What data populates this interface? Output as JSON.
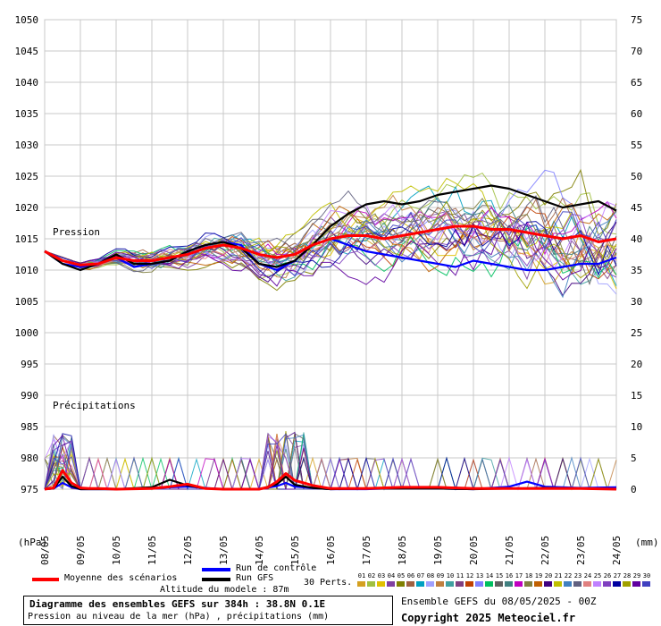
{
  "chart_data": {
    "type": "line",
    "title": "Diagramme des ensembles GEFS sur 384h : 38.8N 0.1E",
    "subtitle": "Pression au niveau de la mer (hPa) , précipitations (mm)",
    "left_axis_unit": "(hPa)",
    "right_axis_unit": "(mm)",
    "pressure_label": "Pression",
    "precip_label": "Précipitations",
    "y_left_ticks": [
      1050,
      1045,
      1040,
      1035,
      1030,
      1025,
      1020,
      1015,
      1010,
      1005,
      1000,
      995,
      990,
      985,
      980,
      975
    ],
    "y_right_ticks": [
      75,
      70,
      65,
      60,
      55,
      50,
      45,
      40,
      35,
      30,
      25,
      20,
      15,
      10,
      5,
      0
    ],
    "x_ticks": [
      "08/05",
      "09/05",
      "10/05",
      "11/05",
      "12/05",
      "13/05",
      "14/05",
      "15/05",
      "16/05",
      "17/05",
      "18/05",
      "19/05",
      "20/05",
      "21/05",
      "22/05",
      "23/05",
      "24/05"
    ],
    "x_days": [
      0,
      1,
      2,
      3,
      4,
      5,
      6,
      7,
      8,
      9,
      10,
      11,
      12,
      13,
      14,
      15,
      16
    ],
    "ylim": [
      975,
      1050
    ],
    "grid": true,
    "series": [
      {
        "name": "Moyenne des scénarios",
        "kind": "pressure",
        "color": "#ff0000",
        "x": [
          0,
          0.5,
          1,
          1.5,
          2,
          2.5,
          3,
          3.5,
          4,
          4.5,
          5,
          5.5,
          6,
          6.5,
          7,
          7.5,
          8,
          8.5,
          9,
          9.5,
          10,
          10.5,
          11,
          11.5,
          12,
          12.5,
          13,
          13.5,
          14,
          14.5,
          15,
          15.5,
          16
        ],
        "y": [
          1013,
          1011.5,
          1010.8,
          1011,
          1012,
          1011.5,
          1011.5,
          1012,
          1012.5,
          1013.5,
          1014,
          1013.5,
          1012.5,
          1012,
          1012.5,
          1014,
          1015,
          1015.5,
          1015.5,
          1015,
          1015.5,
          1016,
          1016.5,
          1017,
          1017,
          1016.5,
          1016.5,
          1016,
          1015.5,
          1015,
          1015.5,
          1014.5,
          1015
        ]
      },
      {
        "name": "Run de contrôle",
        "kind": "pressure",
        "color": "#0000ff",
        "x": [
          0,
          0.5,
          1,
          1.5,
          2,
          2.5,
          3,
          3.5,
          4,
          4.5,
          5,
          5.5,
          6,
          6.5,
          7,
          7.5,
          8,
          8.5,
          9,
          9.5,
          10,
          10.5,
          11,
          11.5,
          12,
          12.5,
          13,
          13.5,
          14,
          14.5,
          15,
          15.5,
          16
        ],
        "y": [
          1013,
          1011,
          1010.5,
          1011,
          1012,
          1010.5,
          1011,
          1011.5,
          1013,
          1014,
          1014.5,
          1014,
          1011,
          1010,
          1011.5,
          1014,
          1015,
          1014,
          1013,
          1012.5,
          1012,
          1011.5,
          1011,
          1010.5,
          1011.5,
          1011,
          1010.5,
          1010,
          1010,
          1010.5,
          1011,
          1011,
          1012
        ]
      },
      {
        "name": "Run GFS",
        "kind": "pressure",
        "color": "#000000",
        "x": [
          0,
          0.5,
          1,
          1.5,
          2,
          2.5,
          3,
          3.5,
          4,
          4.5,
          5,
          5.5,
          6,
          6.5,
          7,
          7.5,
          8,
          8.5,
          9,
          9.5,
          10,
          10.5,
          11,
          11.5,
          12,
          12.5,
          13,
          13.5,
          14,
          14.5,
          15,
          15.5,
          16
        ],
        "y": [
          1013,
          1011,
          1010,
          1011,
          1012.5,
          1011,
          1011,
          1011.5,
          1013,
          1014,
          1014.5,
          1013.5,
          1011,
          1010.5,
          1011.5,
          1014,
          1017,
          1019,
          1020.5,
          1021,
          1020.5,
          1021,
          1022,
          1022.5,
          1023,
          1023.5,
          1023,
          1022,
          1021,
          1020,
          1020.5,
          1021,
          1019.5
        ]
      },
      {
        "name": "Moyenne des scénarios",
        "kind": "precip",
        "color": "#ff0000",
        "x": [
          0,
          0.25,
          0.5,
          0.75,
          1,
          1.25,
          1.5,
          2,
          3,
          3.5,
          4,
          4.5,
          5,
          5.5,
          6,
          6.25,
          6.5,
          6.75,
          7,
          7.25,
          7.5,
          8,
          9,
          10,
          11,
          12,
          13,
          14,
          15,
          16
        ],
        "y": [
          0,
          0.2,
          3,
          1,
          0.2,
          0.1,
          0.1,
          0,
          0.1,
          0.4,
          0.8,
          0.1,
          0,
          0,
          0,
          0.3,
          1.2,
          2.5,
          1.4,
          1,
          0.6,
          0.1,
          0.1,
          0.3,
          0.3,
          0.1,
          0.1,
          0.1,
          0.1,
          0
        ]
      },
      {
        "name": "Run de contrôle",
        "kind": "precip",
        "color": "#0000ff",
        "x": [
          0,
          0.25,
          0.5,
          0.75,
          1,
          2,
          3,
          4,
          5,
          6,
          6.5,
          6.75,
          7,
          7.5,
          8,
          9,
          10,
          11,
          12,
          13,
          13.5,
          14,
          15,
          16
        ],
        "y": [
          0,
          0.1,
          1,
          0.3,
          0,
          0,
          0.2,
          0.4,
          0,
          0,
          0.5,
          1,
          0.4,
          0.2,
          0,
          0,
          0.2,
          0.1,
          0,
          0.4,
          1.2,
          0.4,
          0.2,
          0.3
        ]
      },
      {
        "name": "Run GFS",
        "kind": "precip",
        "color": "#000000",
        "x": [
          0,
          0.25,
          0.5,
          0.75,
          1,
          2,
          3,
          3.5,
          4,
          4.5,
          5,
          6,
          6.5,
          6.75,
          7,
          7.5,
          8,
          9,
          10,
          11,
          12,
          13,
          14,
          15,
          16
        ],
        "y": [
          0,
          0.1,
          2,
          0.5,
          0,
          0,
          0.3,
          1.5,
          0.6,
          0.1,
          0,
          0,
          0.8,
          2,
          0.7,
          0.2,
          0,
          0.1,
          0.1,
          0.1,
          0,
          0.1,
          0.2,
          0.1,
          0
        ]
      }
    ]
  },
  "legend": {
    "mean_label": "Moyenne des scénarios",
    "control_label": "Run de contrôle",
    "gfs_label": "Run GFS",
    "perts_label": "30 Perts.",
    "pert_numbers": [
      "01",
      "02",
      "03",
      "04",
      "05",
      "06",
      "07",
      "08",
      "09",
      "10",
      "11",
      "12",
      "13",
      "14",
      "15",
      "16",
      "17",
      "18",
      "19",
      "20",
      "21",
      "22",
      "23",
      "24",
      "25",
      "26",
      "27",
      "28",
      "29",
      "30"
    ],
    "pert_colors": [
      "#d4a020",
      "#a0c040",
      "#e0c000",
      "#8040a0",
      "#808000",
      "#a06040",
      "#00a0c0",
      "#a0a0ff",
      "#c08040",
      "#40a0a0",
      "#804080",
      "#c04000",
      "#8080ff",
      "#00c060",
      "#606060",
      "#408080",
      "#c000c0",
      "#808040",
      "#c06000",
      "#400080",
      "#c0c000",
      "#4080c0",
      "#606080",
      "#e08080",
      "#c080ff",
      "#8040c0",
      "#0000a0",
      "#a0a000",
      "#6000a0",
      "#4040c0"
    ],
    "altitude": "Altitude du modele : 87m"
  },
  "footer": {
    "title": "Diagramme des ensembles GEFS sur 384h : 38.8N 0.1E",
    "subtitle": "Pression au niveau de la mer (hPa) , précipitations (mm)",
    "ensemble_run": "Ensemble GEFS du 08/05/2025 - 00Z",
    "copyright": "Copyright 2025 Meteociel.fr"
  }
}
